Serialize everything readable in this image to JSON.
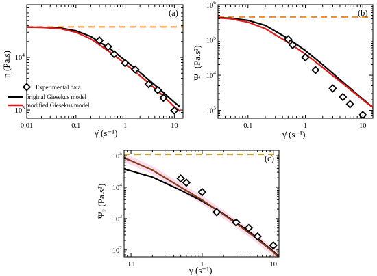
{
  "colors": {
    "experimental": "#000000",
    "original": "#000000",
    "modified": "#e01b1b",
    "zero_shear_a": "#f08a24",
    "zero_shear_b": "#f08a24",
    "zero_shear_c": "#c9a227",
    "model_c": "#8b3a1a",
    "band_c": "#f7c6e0"
  },
  "chart_data": [
    {
      "type": "line",
      "panel_label": "(a)",
      "xlabel": "γ̇ (s⁻¹)",
      "ylabel": "η (Pa.s)",
      "xscale": "log",
      "yscale": "log",
      "xlim": [
        0.01,
        15
      ],
      "ylim": [
        700,
        100000
      ],
      "x_ticks": [
        {
          "value": 0.01,
          "label": "0.01"
        },
        {
          "value": 0.1,
          "label": "0.1"
        },
        {
          "value": 1,
          "label": "1"
        },
        {
          "value": 10,
          "label": "10"
        }
      ],
      "y_ticks": [
        {
          "value": 1000,
          "base": "10",
          "exp": "3"
        },
        {
          "value": 10000,
          "base": "10",
          "exp": "4"
        }
      ],
      "legend": {
        "placement": "lower-left",
        "entries": [
          {
            "series": "experimental",
            "label": "Experimental data"
          },
          {
            "series": "original",
            "label": "original Giesekus model"
          },
          {
            "series": "modified",
            "label": "modified Giesekus model"
          }
        ]
      },
      "zero_shear": 38000,
      "series": [
        {
          "key": "experimental",
          "name": "Experimental data",
          "marker": "diamond",
          "x": [
            0.3,
            0.45,
            0.6,
            1.0,
            1.6,
            3.0,
            4.6,
            6.0,
            10.0
          ],
          "y": [
            21000,
            16000,
            11500,
            7800,
            5900,
            3100,
            2400,
            1700,
            980
          ]
        },
        {
          "key": "original",
          "name": "original Giesekus model",
          "x": [
            0.01,
            0.02,
            0.05,
            0.1,
            0.2,
            0.5,
            1,
            2,
            5,
            10,
            13
          ],
          "y": [
            37500,
            37300,
            36000,
            32000,
            25000,
            14500,
            8800,
            5200,
            2500,
            1400,
            1150
          ]
        },
        {
          "key": "modified",
          "name": "modified Giesekus model",
          "x": [
            0.01,
            0.02,
            0.05,
            0.1,
            0.2,
            0.5,
            1,
            2,
            5,
            10,
            13
          ],
          "y": [
            37500,
            37200,
            35000,
            30000,
            22500,
            12500,
            7600,
            4500,
            2150,
            1150,
            950
          ]
        }
      ]
    },
    {
      "type": "line",
      "panel_label": "(b)",
      "xlabel": "γ̇ (s⁻¹)",
      "ylabel": "Ψ₁ (Pa.s²)",
      "xscale": "log",
      "yscale": "log",
      "xlim": [
        0.03,
        15
      ],
      "ylim": [
        600,
        1000000
      ],
      "x_ticks": [
        {
          "value": 0.1,
          "label": "0.1"
        },
        {
          "value": 1,
          "label": "1"
        },
        {
          "value": 10,
          "label": "10"
        }
      ],
      "y_ticks": [
        {
          "value": 1000,
          "base": "10",
          "exp": "3"
        },
        {
          "value": 10000,
          "base": "10",
          "exp": "4"
        },
        {
          "value": 100000,
          "base": "10",
          "exp": "5"
        },
        {
          "value": 1000000,
          "base": "10",
          "exp": "6"
        }
      ],
      "zero_shear": 450000,
      "series": [
        {
          "key": "experimental",
          "name": "Experimental data",
          "marker": "diamond",
          "x": [
            0.5,
            0.6,
            1.0,
            1.5,
            3.0,
            4.5,
            6.0,
            10.0
          ],
          "y": [
            105000,
            72000,
            32000,
            14000,
            4200,
            2400,
            1500,
            740
          ]
        },
        {
          "key": "original",
          "name": "original Giesekus model",
          "x": [
            0.03,
            0.05,
            0.1,
            0.2,
            0.5,
            1,
            2,
            5,
            10,
            15
          ],
          "y": [
            430000,
            415000,
            360000,
            260000,
            110000,
            50000,
            20000,
            5500,
            2100,
            1200
          ]
        },
        {
          "key": "modified",
          "name": "modified Giesekus model",
          "x": [
            0.03,
            0.05,
            0.1,
            0.2,
            0.5,
            1,
            2,
            5,
            10,
            15
          ],
          "y": [
            425000,
            400000,
            320000,
            210000,
            85000,
            40000,
            16500,
            5000,
            2000,
            1200
          ]
        }
      ]
    },
    {
      "type": "line",
      "panel_label": "(c)",
      "xlabel": "γ̇ (s⁻¹)",
      "ylabel": "−Ψ₂ (Pa.s²)",
      "xscale": "log",
      "yscale": "log",
      "xlim": [
        0.08,
        12
      ],
      "ylim": [
        60,
        150000
      ],
      "x_ticks": [
        {
          "value": 0.1,
          "label": "0.1"
        },
        {
          "value": 1,
          "label": "1"
        },
        {
          "value": 10,
          "label": "10"
        }
      ],
      "y_ticks": [
        {
          "value": 100,
          "base": "10",
          "exp": "2"
        },
        {
          "value": 1000,
          "base": "10",
          "exp": "3"
        },
        {
          "value": 10000,
          "base": "10",
          "exp": "4"
        },
        {
          "value": 100000,
          "base": "10",
          "exp": "5"
        }
      ],
      "zero_shear": 110000,
      "series": [
        {
          "key": "experimental",
          "name": "Experimental data",
          "marker": "diamond",
          "x": [
            0.5,
            0.6,
            1.0,
            1.6,
            3.0,
            4.5,
            6.0,
            10.0
          ],
          "y": [
            19000,
            14000,
            7000,
            1600,
            750,
            500,
            270,
            140
          ]
        },
        {
          "key": "original",
          "name": "original Giesekus model",
          "x": [
            0.08,
            0.1,
            0.2,
            0.5,
            1,
            2,
            5,
            10,
            12
          ],
          "y": [
            38000,
            33000,
            21000,
            8000,
            3600,
            1400,
            330,
            90,
            60
          ]
        },
        {
          "key": "model_c",
          "name": "modified Giesekus model",
          "x": [
            0.08,
            0.1,
            0.2,
            0.5,
            1,
            2,
            5,
            10,
            12
          ],
          "y": [
            85000,
            70000,
            35000,
            10000,
            3900,
            1350,
            300,
            85,
            58
          ]
        }
      ]
    }
  ]
}
